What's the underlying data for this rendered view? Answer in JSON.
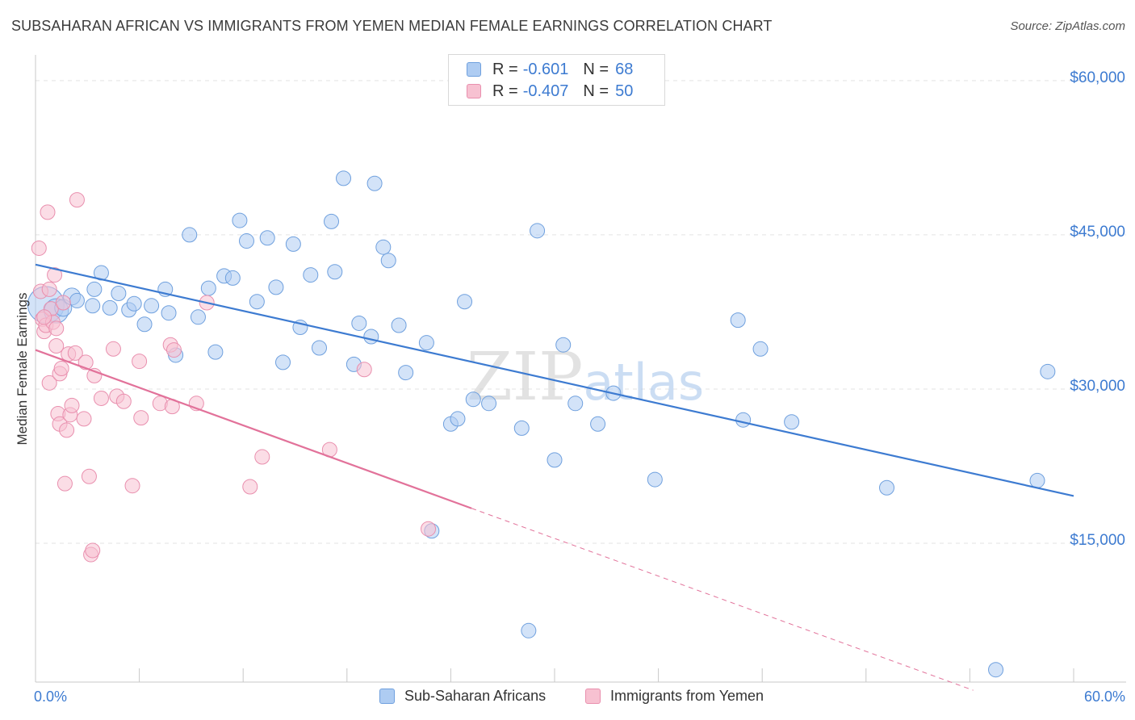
{
  "header": {
    "title": "SUBSAHARAN AFRICAN VS IMMIGRANTS FROM YEMEN MEDIAN FEMALE EARNINGS CORRELATION CHART",
    "source": "Source: ZipAtlas.com"
  },
  "watermark": "ZIPatlas",
  "legend_top": {
    "rows": [
      {
        "r_label": "R =",
        "r_value": "-0.601",
        "n_label": "N =",
        "n_value": "68",
        "color": "#aeccf2",
        "border": "#6fa0de"
      },
      {
        "r_label": "R =",
        "r_value": "-0.407",
        "n_label": "N =",
        "n_value": "50",
        "color": "#f7c1d1",
        "border": "#e98fae"
      }
    ]
  },
  "legend_bottom": {
    "items": [
      {
        "label": "Sub-Saharan Africans",
        "color": "#aeccf2",
        "border": "#6fa0de"
      },
      {
        "label": "Immigrants from Yemen",
        "color": "#f7c1d1",
        "border": "#e98fae"
      }
    ]
  },
  "axes": {
    "ylabel": "Median Female Earnings",
    "y_ticks": [
      "$60,000",
      "$45,000",
      "$30,000",
      "$15,000"
    ],
    "x_tick_left": "0.0%",
    "x_tick_right": "60.0%"
  },
  "chart_data": {
    "type": "scatter",
    "title": "SUBSAHARAN AFRICAN VS IMMIGRANTS FROM YEMEN MEDIAN FEMALE EARNINGS CORRELATION CHART",
    "xlabel": "",
    "ylabel": "Median Female Earnings",
    "xlim": [
      0,
      60
    ],
    "ylim": [
      1500,
      62500
    ],
    "y_tick_values": [
      60000,
      45000,
      30000,
      15000
    ],
    "grid": true,
    "legend_position": "top-center",
    "colors": {
      "blue": "#3d7bd1",
      "blue_fill": "#aeccf2",
      "pink": "#e2729a",
      "pink_fill": "#f7c1d1"
    },
    "series": [
      {
        "name": "Sub-Saharan Africans",
        "color": "#3d7bd1",
        "r": -0.601,
        "n": 68,
        "trend": {
          "x": [
            0,
            60
          ],
          "y": [
            42100,
            19600
          ],
          "style": "solid"
        },
        "points": [
          [
            0.6,
            38200
          ],
          [
            1.2,
            37600
          ],
          [
            1.6,
            37900
          ],
          [
            2.1,
            39000
          ],
          [
            2.4,
            38600
          ],
          [
            3.4,
            39700
          ],
          [
            3.3,
            38100
          ],
          [
            3.8,
            41300
          ],
          [
            4.3,
            37900
          ],
          [
            4.8,
            39300
          ],
          [
            5.4,
            37700
          ],
          [
            5.7,
            38300
          ],
          [
            6.3,
            36300
          ],
          [
            6.7,
            38100
          ],
          [
            7.5,
            39700
          ],
          [
            7.7,
            37400
          ],
          [
            8.1,
            33300
          ],
          [
            8.9,
            45000
          ],
          [
            9.4,
            37000
          ],
          [
            10.0,
            39800
          ],
          [
            10.4,
            33600
          ],
          [
            10.9,
            41000
          ],
          [
            11.4,
            40800
          ],
          [
            11.8,
            46400
          ],
          [
            12.2,
            44400
          ],
          [
            12.8,
            38500
          ],
          [
            13.4,
            44700
          ],
          [
            13.9,
            39900
          ],
          [
            14.3,
            32600
          ],
          [
            14.9,
            44100
          ],
          [
            15.3,
            36000
          ],
          [
            15.9,
            41100
          ],
          [
            16.4,
            34000
          ],
          [
            17.1,
            46300
          ],
          [
            17.3,
            41400
          ],
          [
            17.8,
            50500
          ],
          [
            18.4,
            32400
          ],
          [
            18.7,
            36400
          ],
          [
            19.4,
            35100
          ],
          [
            19.6,
            50000
          ],
          [
            20.1,
            43800
          ],
          [
            20.4,
            42500
          ],
          [
            21.0,
            36200
          ],
          [
            21.4,
            31600
          ],
          [
            22.6,
            34500
          ],
          [
            22.9,
            16200
          ],
          [
            24.0,
            26600
          ],
          [
            24.4,
            27100
          ],
          [
            24.8,
            38500
          ],
          [
            25.3,
            29000
          ],
          [
            26.2,
            28600
          ],
          [
            28.1,
            26200
          ],
          [
            28.5,
            6500
          ],
          [
            29.0,
            45400
          ],
          [
            30.0,
            23100
          ],
          [
            30.5,
            34300
          ],
          [
            31.2,
            28600
          ],
          [
            32.5,
            26600
          ],
          [
            33.4,
            29600
          ],
          [
            35.8,
            21200
          ],
          [
            40.6,
            36700
          ],
          [
            40.9,
            27000
          ],
          [
            41.9,
            33900
          ],
          [
            43.7,
            26800
          ],
          [
            49.2,
            20400
          ],
          [
            55.5,
            2700
          ],
          [
            57.9,
            21100
          ],
          [
            58.5,
            31700
          ]
        ],
        "sizes": [
          30,
          20,
          14,
          14,
          12,
          12,
          12,
          12,
          12,
          12,
          12,
          12,
          12,
          12,
          12,
          12,
          12,
          12,
          12,
          12,
          12,
          12,
          12,
          12,
          12,
          12,
          12,
          12,
          12,
          12,
          12,
          12,
          12,
          12,
          12,
          12,
          12,
          12,
          12,
          12,
          12,
          12,
          12,
          12,
          12,
          12,
          12,
          12,
          12,
          12,
          12,
          12,
          12,
          12,
          12,
          12,
          12,
          12,
          12,
          12,
          12,
          12,
          12,
          12,
          12,
          12,
          12,
          12
        ]
      },
      {
        "name": "Immigrants from Yemen",
        "color": "#e2729a",
        "r": -0.407,
        "n": 50,
        "trend": {
          "x": [
            0,
            25.2
          ],
          "y": [
            33800,
            18400
          ],
          "style": "solid",
          "dashed_extension": {
            "x": [
              25.2,
              54.2
            ],
            "y": [
              18400,
              700
            ]
          }
        },
        "points": [
          [
            0.2,
            43700
          ],
          [
            0.3,
            39500
          ],
          [
            0.4,
            36800
          ],
          [
            0.5,
            35600
          ],
          [
            0.6,
            36200
          ],
          [
            0.8,
            39700
          ],
          [
            0.7,
            47200
          ],
          [
            0.8,
            30600
          ],
          [
            0.9,
            37800
          ],
          [
            1.0,
            36500
          ],
          [
            1.1,
            41100
          ],
          [
            1.2,
            34200
          ],
          [
            1.2,
            35900
          ],
          [
            1.3,
            27600
          ],
          [
            1.4,
            26600
          ],
          [
            1.4,
            31500
          ],
          [
            1.6,
            38400
          ],
          [
            1.7,
            20800
          ],
          [
            1.8,
            26000
          ],
          [
            1.9,
            33400
          ],
          [
            2.0,
            27500
          ],
          [
            2.1,
            28400
          ],
          [
            2.3,
            33500
          ],
          [
            2.4,
            48400
          ],
          [
            2.8,
            27100
          ],
          [
            2.9,
            32600
          ],
          [
            3.1,
            21500
          ],
          [
            3.2,
            13900
          ],
          [
            3.3,
            14300
          ],
          [
            3.4,
            31300
          ],
          [
            3.8,
            29100
          ],
          [
            4.5,
            33900
          ],
          [
            4.7,
            29300
          ],
          [
            5.1,
            28800
          ],
          [
            5.6,
            20600
          ],
          [
            6.0,
            32700
          ],
          [
            6.1,
            27200
          ],
          [
            7.2,
            28600
          ],
          [
            7.8,
            34300
          ],
          [
            7.9,
            28300
          ],
          [
            8.0,
            33800
          ],
          [
            9.3,
            28600
          ],
          [
            9.9,
            38400
          ],
          [
            12.4,
            20500
          ],
          [
            13.1,
            23400
          ],
          [
            17.0,
            24100
          ],
          [
            19.0,
            31900
          ],
          [
            22.7,
            16400
          ],
          [
            0.5,
            37000
          ],
          [
            1.5,
            32000
          ]
        ],
        "sizes": [
          12,
          12,
          12,
          12,
          12,
          12,
          12,
          12,
          12,
          12,
          12,
          12,
          12,
          12,
          12,
          12,
          12,
          12,
          12,
          12,
          12,
          12,
          12,
          12,
          12,
          12,
          12,
          12,
          12,
          12,
          12,
          12,
          12,
          12,
          12,
          12,
          12,
          12,
          12,
          12,
          12,
          12,
          12,
          12,
          12,
          12,
          12,
          12,
          12,
          12
        ]
      }
    ]
  }
}
